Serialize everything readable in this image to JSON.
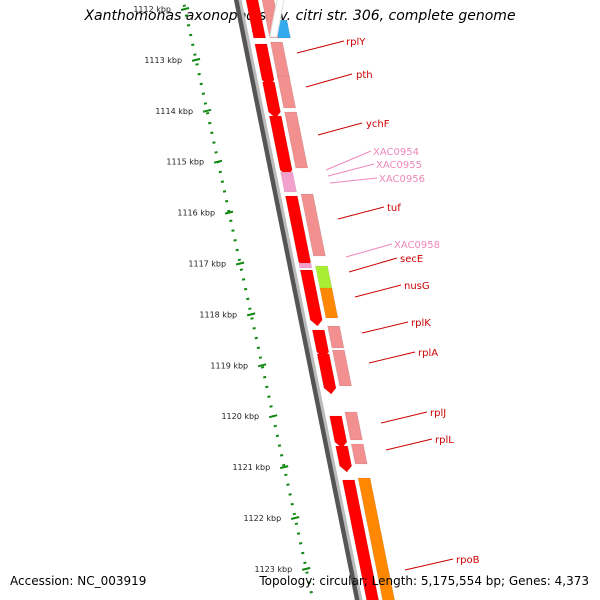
{
  "title": "Xanthomonas axonopodis pv. citri str. 306, complete genome",
  "accession": "Accession: NC_003919",
  "topology": "Topology: circular; Length: 5,175,554 bp; Genes: 4,373",
  "colors": {
    "backbone": "#808080",
    "ruler_ticks": "#118811",
    "gene_red": "#ff0000",
    "gene_pink": "#f29090",
    "gene_lightpink": "#f4a0cc",
    "gene_green": "#aaee33",
    "gene_orange": "#ff8800",
    "gene_blue": "#33aaee",
    "label_red": "#cc0000",
    "label_pink": "#ee88bb"
  },
  "kbp_labels": [
    "1112 kbp",
    "1113 kbp",
    "1114 kbp",
    "1115 kbp",
    "1116 kbp",
    "1117 kbp",
    "1118 kbp",
    "1119 kbp",
    "1120 kbp",
    "1121 kbp",
    "1122 kbp",
    "1123 kbp"
  ],
  "gene_labels": [
    "rplY",
    "pth",
    "ychF",
    "XAC0954",
    "XAC0955",
    "XAC0956",
    "tuf",
    "XAC0958",
    "secE",
    "nusG",
    "rplK",
    "rplA",
    "rplJ",
    "rplL",
    "rpoB"
  ]
}
